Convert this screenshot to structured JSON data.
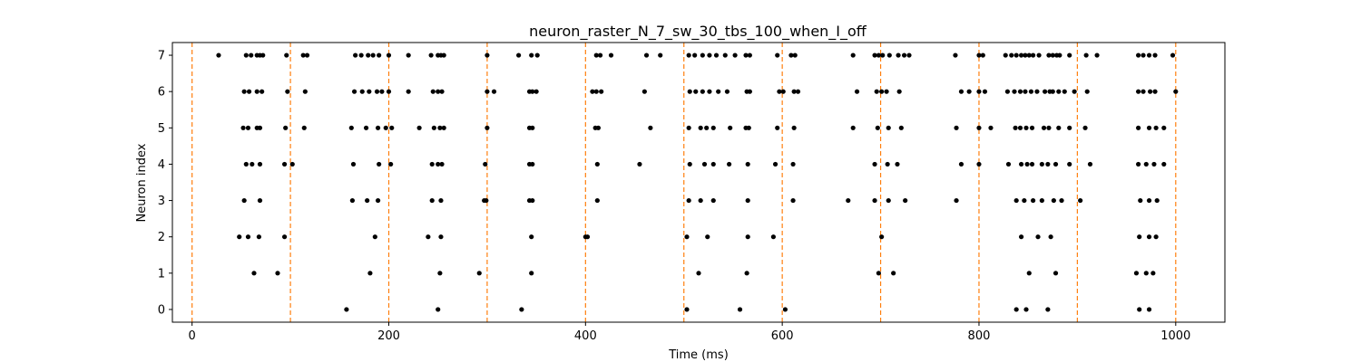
{
  "chart_data": {
    "type": "scatter",
    "title": "neuron_raster_N_7_sw_30_tbs_100_when_I_off",
    "xlabel": "Time (ms)",
    "ylabel": "Neuron index",
    "xlim": [
      -20,
      1050
    ],
    "ylim": [
      -0.35,
      7.35
    ],
    "x_ticks": [
      0,
      200,
      400,
      600,
      800,
      1000
    ],
    "y_ticks": [
      0,
      1,
      2,
      3,
      4,
      5,
      6,
      7
    ],
    "grid": false,
    "marker_color": "#000000",
    "vline_color": "#ff7f0e",
    "vlines": [
      0,
      100,
      200,
      300,
      400,
      500,
      600,
      700,
      800,
      900,
      1000
    ],
    "series": [
      {
        "neuron": 0,
        "x": [
          157,
          250,
          335,
          503,
          557,
          603,
          838,
          848,
          870,
          963,
          973
        ]
      },
      {
        "neuron": 1,
        "x": [
          63,
          87,
          181,
          252,
          292,
          345,
          515,
          564,
          698,
          713,
          851,
          878,
          960,
          970,
          977
        ]
      },
      {
        "neuron": 2,
        "x": [
          48,
          57,
          68,
          94,
          186,
          240,
          253,
          345,
          400,
          402,
          503,
          524,
          565,
          591,
          701,
          843,
          860,
          873,
          963,
          973,
          980
        ]
      },
      {
        "neuron": 3,
        "x": [
          53,
          69,
          163,
          178,
          189,
          244,
          253,
          297,
          299,
          343,
          346,
          412,
          505,
          517,
          530,
          565,
          611,
          667,
          694,
          708,
          725,
          777,
          838,
          846,
          855,
          864,
          876,
          884,
          903,
          964,
          973,
          981
        ]
      },
      {
        "neuron": 4,
        "x": [
          55,
          61,
          69,
          94,
          102,
          164,
          190,
          202,
          244,
          250,
          254,
          298,
          343,
          346,
          412,
          455,
          506,
          521,
          530,
          546,
          565,
          593,
          611,
          694,
          707,
          717,
          782,
          800,
          830,
          843,
          849,
          854,
          864,
          870,
          878,
          892,
          913,
          962,
          970,
          978,
          988
        ]
      },
      {
        "neuron": 5,
        "x": [
          52,
          57,
          66,
          69,
          95,
          114,
          162,
          177,
          189,
          197,
          203,
          231,
          246,
          252,
          256,
          300,
          343,
          346,
          410,
          413,
          466,
          505,
          517,
          523,
          530,
          547,
          563,
          566,
          595,
          612,
          672,
          697,
          708,
          721,
          777,
          800,
          812,
          837,
          842,
          848,
          854,
          866,
          871,
          881,
          892,
          908,
          962,
          973,
          980,
          988
        ]
      },
      {
        "neuron": 6,
        "x": [
          53,
          58,
          66,
          71,
          97,
          115,
          165,
          173,
          180,
          188,
          193,
          200,
          220,
          245,
          250,
          254,
          300,
          307,
          343,
          346,
          350,
          407,
          411,
          416,
          460,
          506,
          512,
          519,
          526,
          535,
          544,
          564,
          567,
          597,
          601,
          612,
          616,
          676,
          696,
          701,
          706,
          719,
          782,
          790,
          800,
          806,
          829,
          836,
          842,
          847,
          853,
          859,
          867,
          872,
          875,
          881,
          887,
          897,
          910,
          962,
          967,
          974,
          979,
          1000
        ]
      },
      {
        "neuron": 7,
        "x": [
          27,
          55,
          60,
          66,
          69,
          72,
          96,
          113,
          117,
          166,
          172,
          179,
          184,
          190,
          200,
          220,
          243,
          250,
          253,
          256,
          300,
          332,
          345,
          351,
          411,
          415,
          426,
          462,
          476,
          505,
          511,
          519,
          526,
          533,
          542,
          552,
          563,
          567,
          595,
          609,
          613,
          672,
          694,
          698,
          702,
          709,
          718,
          724,
          729,
          776,
          800,
          804,
          827,
          833,
          838,
          843,
          847,
          851,
          855,
          861,
          871,
          875,
          879,
          882,
          892,
          909,
          920,
          962,
          967,
          973,
          979,
          997
        ]
      }
    ]
  }
}
